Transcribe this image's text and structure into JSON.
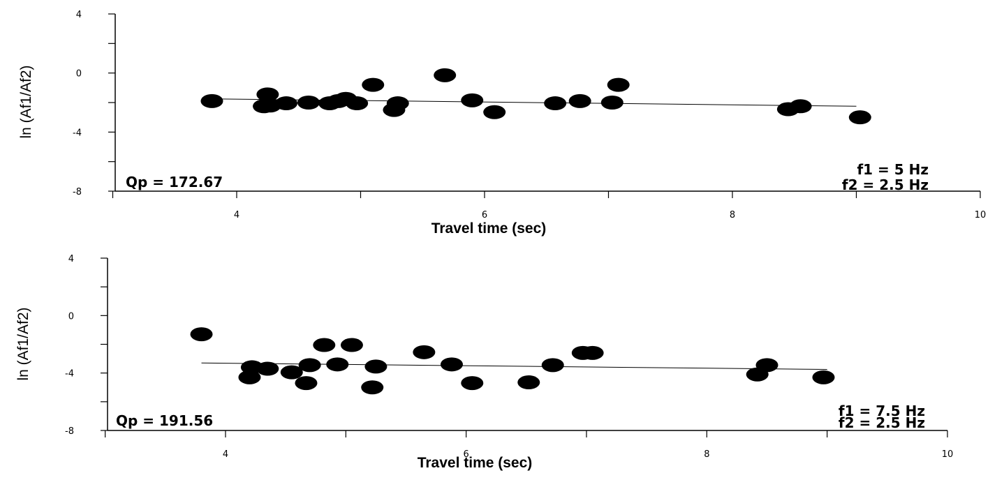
{
  "chart_data": [
    {
      "type": "scatter",
      "xlabel": "Travel time (sec)",
      "ylabel": "ln (Af1/Af2)",
      "xlim": [
        3,
        10
      ],
      "ylim": [
        -8,
        4
      ],
      "xticks": [
        "4",
        "6",
        "8",
        "10"
      ],
      "yticks": [
        "4",
        "0",
        "-4",
        "-8"
      ],
      "qp_label": "Qp = 172.67",
      "f1_label": "f1 = 5 Hz",
      "f2_label": "f2 = 2.5 Hz",
      "fit_line": {
        "x": [
          3.8,
          9.0
        ],
        "y": [
          -1.75,
          -2.25
        ]
      },
      "points": [
        {
          "x": 3.8,
          "y": -1.9
        },
        {
          "x": 4.22,
          "y": -2.25
        },
        {
          "x": 4.25,
          "y": -1.45
        },
        {
          "x": 4.27,
          "y": -2.2
        },
        {
          "x": 4.4,
          "y": -2.05
        },
        {
          "x": 4.58,
          "y": -2.0
        },
        {
          "x": 4.75,
          "y": -2.05
        },
        {
          "x": 4.82,
          "y": -1.9
        },
        {
          "x": 4.88,
          "y": -1.75
        },
        {
          "x": 4.97,
          "y": -2.05
        },
        {
          "x": 5.1,
          "y": -0.8
        },
        {
          "x": 5.27,
          "y": -2.5
        },
        {
          "x": 5.3,
          "y": -2.05
        },
        {
          "x": 5.68,
          "y": -0.15
        },
        {
          "x": 5.9,
          "y": -1.85
        },
        {
          "x": 6.08,
          "y": -2.65
        },
        {
          "x": 6.57,
          "y": -2.05
        },
        {
          "x": 6.77,
          "y": -1.9
        },
        {
          "x": 7.03,
          "y": -2.0
        },
        {
          "x": 7.08,
          "y": -0.8
        },
        {
          "x": 8.45,
          "y": -2.45
        },
        {
          "x": 8.55,
          "y": -2.25
        },
        {
          "x": 9.03,
          "y": -3.0
        }
      ]
    },
    {
      "type": "scatter",
      "xlabel": "Travel time (sec)",
      "ylabel": "ln (Af1/Af2)",
      "xlim": [
        3,
        10
      ],
      "ylim": [
        -8,
        4
      ],
      "xticks": [
        "4",
        "6",
        "8",
        "10"
      ],
      "yticks": [
        "4",
        "0",
        "-4",
        "-8"
      ],
      "qp_label": "Qp = 191.56",
      "f1_label": "f1 = 7.5 Hz",
      "f2_label": "f2 = 2.5 Hz",
      "fit_line": {
        "x": [
          3.8,
          9.0
        ],
        "y": [
          -3.3,
          -3.75
        ]
      },
      "points": [
        {
          "x": 3.8,
          "y": -1.3
        },
        {
          "x": 4.2,
          "y": -4.3
        },
        {
          "x": 4.22,
          "y": -3.6
        },
        {
          "x": 4.35,
          "y": -3.7
        },
        {
          "x": 4.55,
          "y": -3.95
        },
        {
          "x": 4.67,
          "y": -4.7
        },
        {
          "x": 4.7,
          "y": -3.45
        },
        {
          "x": 4.82,
          "y": -2.05
        },
        {
          "x": 4.93,
          "y": -3.4
        },
        {
          "x": 5.05,
          "y": -2.05
        },
        {
          "x": 5.22,
          "y": -5.0
        },
        {
          "x": 5.25,
          "y": -3.55
        },
        {
          "x": 5.65,
          "y": -2.55
        },
        {
          "x": 5.88,
          "y": -3.4
        },
        {
          "x": 6.05,
          "y": -4.7
        },
        {
          "x": 6.52,
          "y": -4.65
        },
        {
          "x": 6.72,
          "y": -3.45
        },
        {
          "x": 6.97,
          "y": -2.6
        },
        {
          "x": 7.05,
          "y": -2.6
        },
        {
          "x": 8.42,
          "y": -4.1
        },
        {
          "x": 8.5,
          "y": -3.45
        },
        {
          "x": 8.97,
          "y": -4.3
        }
      ]
    }
  ]
}
